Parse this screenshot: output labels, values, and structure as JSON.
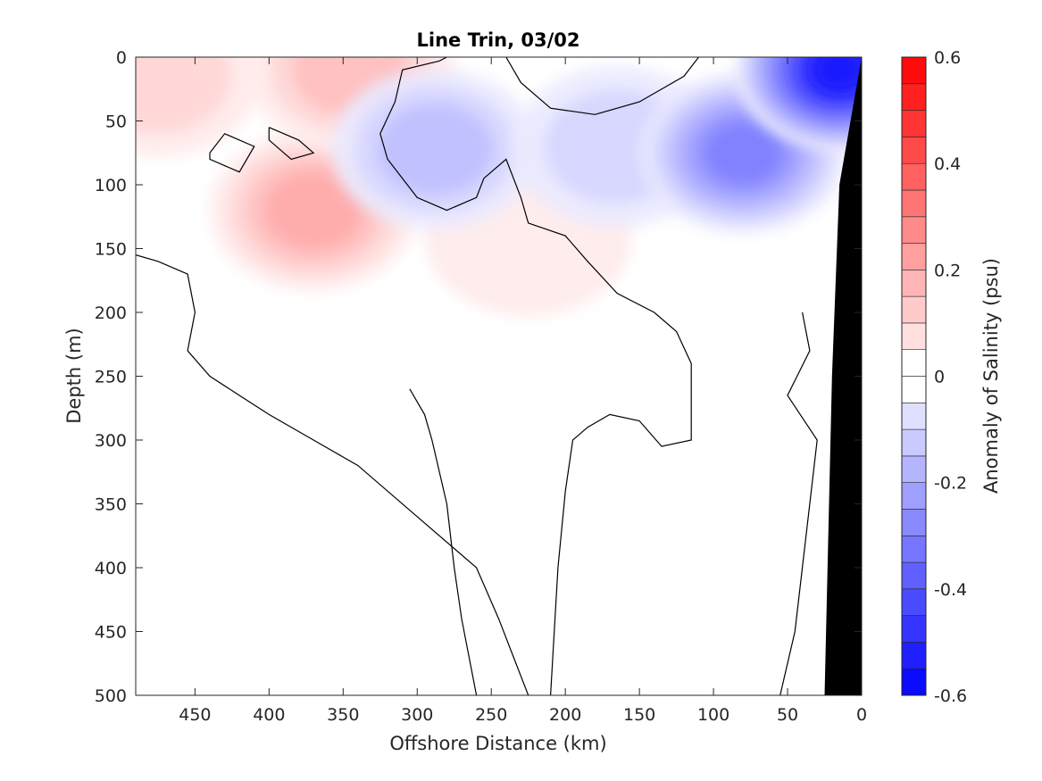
{
  "chart_data": {
    "type": "contourf",
    "title": "Line Trin, 03/02",
    "xlabel": "Offshore Distance (km)",
    "ylabel": "Depth (m)",
    "xlim": [
      490,
      0
    ],
    "ylim": [
      500,
      0
    ],
    "x_reversed": true,
    "y_reversed": true,
    "x_ticks": [
      450,
      400,
      350,
      300,
      250,
      200,
      150,
      100,
      50,
      0
    ],
    "y_ticks": [
      0,
      50,
      100,
      150,
      200,
      250,
      300,
      350,
      400,
      450,
      500
    ],
    "colorbar": {
      "label": "Anomaly of Salinity (psu)",
      "limits": [
        -0.6,
        0.6
      ],
      "ticks": [
        -0.6,
        -0.4,
        -0.2,
        0,
        0.2,
        0.4,
        0.6
      ],
      "levels": [
        -0.6,
        -0.55,
        -0.5,
        -0.45,
        -0.4,
        -0.35,
        -0.3,
        -0.25,
        -0.2,
        -0.15,
        -0.1,
        -0.05,
        0,
        0.05,
        0.1,
        0.15,
        0.2,
        0.25,
        0.3,
        0.35,
        0.4,
        0.45,
        0.5,
        0.55,
        0.6
      ],
      "low_color": "#0000ff",
      "mid_color": "#ffffff",
      "high_color": "#ff0000"
    },
    "features": [
      {
        "sign": "positive",
        "center_km": 370,
        "center_depth_m": 120,
        "peak_anomaly": 0.2,
        "description_level": "0.15-0.2"
      },
      {
        "sign": "positive",
        "center_km": 345,
        "center_depth_m": 10,
        "peak_anomaly": 0.15
      },
      {
        "sign": "positive",
        "center_km": 475,
        "center_depth_m": 15,
        "peak_anomaly": 0.1
      },
      {
        "sign": "positive",
        "center_km": 225,
        "center_depth_m": 140,
        "peak_anomaly": 0.05
      },
      {
        "sign": "negative",
        "center_km": 288,
        "center_depth_m": 72,
        "peak_anomaly": -0.15
      },
      {
        "sign": "negative",
        "center_km": 165,
        "center_depth_m": 70,
        "peak_anomaly": -0.1
      },
      {
        "sign": "negative",
        "center_km": 80,
        "center_depth_m": 75,
        "peak_anomaly": -0.3
      },
      {
        "sign": "negative",
        "center_km": 15,
        "center_depth_m": 10,
        "peak_anomaly": -0.55
      }
    ],
    "zero_contours": [
      {
        "name": "zero-contour-upper",
        "points": [
          [
            280,
            0
          ],
          [
            285,
            3
          ],
          [
            310,
            10
          ],
          [
            315,
            35
          ],
          [
            325,
            60
          ],
          [
            320,
            80
          ],
          [
            300,
            110
          ],
          [
            280,
            120
          ],
          [
            260,
            110
          ],
          [
            255,
            95
          ],
          [
            240,
            80
          ],
          [
            230,
            110
          ],
          [
            225,
            130
          ],
          [
            200,
            140
          ],
          [
            185,
            160
          ],
          [
            165,
            185
          ],
          [
            140,
            200
          ],
          [
            125,
            215
          ],
          [
            115,
            240
          ],
          [
            115,
            300
          ],
          [
            135,
            305
          ],
          [
            150,
            285
          ],
          [
            170,
            280
          ],
          [
            185,
            290
          ],
          [
            195,
            300
          ],
          [
            200,
            340
          ],
          [
            205,
            400
          ],
          [
            210,
            500
          ]
        ]
      },
      {
        "name": "zero-contour-surface",
        "points": [
          [
            240,
            0
          ],
          [
            230,
            20
          ],
          [
            210,
            40
          ],
          [
            180,
            45
          ],
          [
            150,
            35
          ],
          [
            120,
            15
          ],
          [
            110,
            0
          ]
        ]
      },
      {
        "name": "zero-contour-loop-a",
        "points": [
          [
            400,
            55
          ],
          [
            380,
            65
          ],
          [
            370,
            75
          ],
          [
            385,
            80
          ],
          [
            400,
            65
          ],
          [
            400,
            55
          ]
        ]
      },
      {
        "name": "zero-contour-loop-b",
        "points": [
          [
            440,
            75
          ],
          [
            430,
            60
          ],
          [
            410,
            70
          ],
          [
            420,
            90
          ],
          [
            440,
            80
          ],
          [
            440,
            75
          ]
        ]
      },
      {
        "name": "zero-contour-left",
        "points": [
          [
            490,
            155
          ],
          [
            475,
            160
          ],
          [
            455,
            170
          ],
          [
            450,
            200
          ],
          [
            455,
            230
          ],
          [
            440,
            250
          ],
          [
            420,
            265
          ],
          [
            400,
            280
          ],
          [
            370,
            300
          ],
          [
            340,
            320
          ],
          [
            300,
            360
          ],
          [
            260,
            400
          ],
          [
            245,
            440
          ],
          [
            235,
            470
          ],
          [
            225,
            500
          ]
        ]
      },
      {
        "name": "zero-contour-mid",
        "points": [
          [
            305,
            260
          ],
          [
            295,
            280
          ],
          [
            290,
            300
          ],
          [
            280,
            350
          ],
          [
            275,
            400
          ],
          [
            270,
            440
          ],
          [
            265,
            470
          ],
          [
            260,
            500
          ]
        ]
      },
      {
        "name": "zero-contour-right",
        "points": [
          [
            40,
            200
          ],
          [
            35,
            230
          ],
          [
            50,
            265
          ],
          [
            30,
            300
          ],
          [
            35,
            350
          ],
          [
            40,
            400
          ],
          [
            45,
            450
          ],
          [
            55,
            500
          ]
        ]
      }
    ],
    "bathymetry": {
      "color": "#000000",
      "points": [
        [
          0,
          0
        ],
        [
          0,
          500
        ],
        [
          25,
          500
        ],
        [
          20,
          250
        ],
        [
          15,
          100
        ],
        [
          0,
          0
        ]
      ]
    }
  }
}
